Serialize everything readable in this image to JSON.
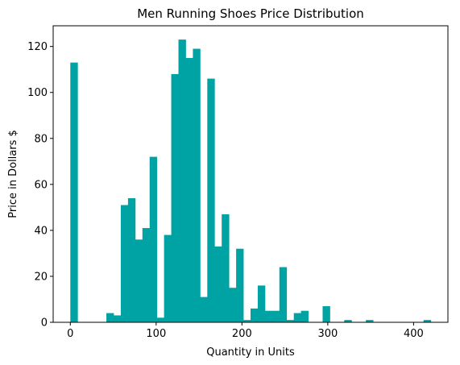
{
  "chart_data": {
    "type": "bar",
    "title": "Men Running Shoes Price Distribution",
    "xlabel": "Quantity in Units",
    "ylabel": "Price in Dollars $",
    "xlim": [
      -20,
      440
    ],
    "ylim": [
      0,
      129
    ],
    "grid": false,
    "bar_color": "#00a3a3",
    "bin_start": 0,
    "bin_width": 8.4,
    "x_ticks": [
      0,
      100,
      200,
      300,
      400
    ],
    "y_ticks": [
      0,
      20,
      40,
      60,
      80,
      100,
      120
    ],
    "values": [
      113,
      0,
      0,
      0,
      0,
      4,
      3,
      51,
      54,
      36,
      41,
      72,
      2,
      38,
      108,
      123,
      115,
      119,
      11,
      106,
      33,
      47,
      15,
      32,
      1,
      6,
      16,
      5,
      5,
      24,
      1,
      4,
      5,
      0,
      0,
      7,
      0,
      0,
      1,
      0,
      0,
      1,
      0,
      0,
      0,
      0,
      0,
      0,
      0,
      1
    ]
  }
}
